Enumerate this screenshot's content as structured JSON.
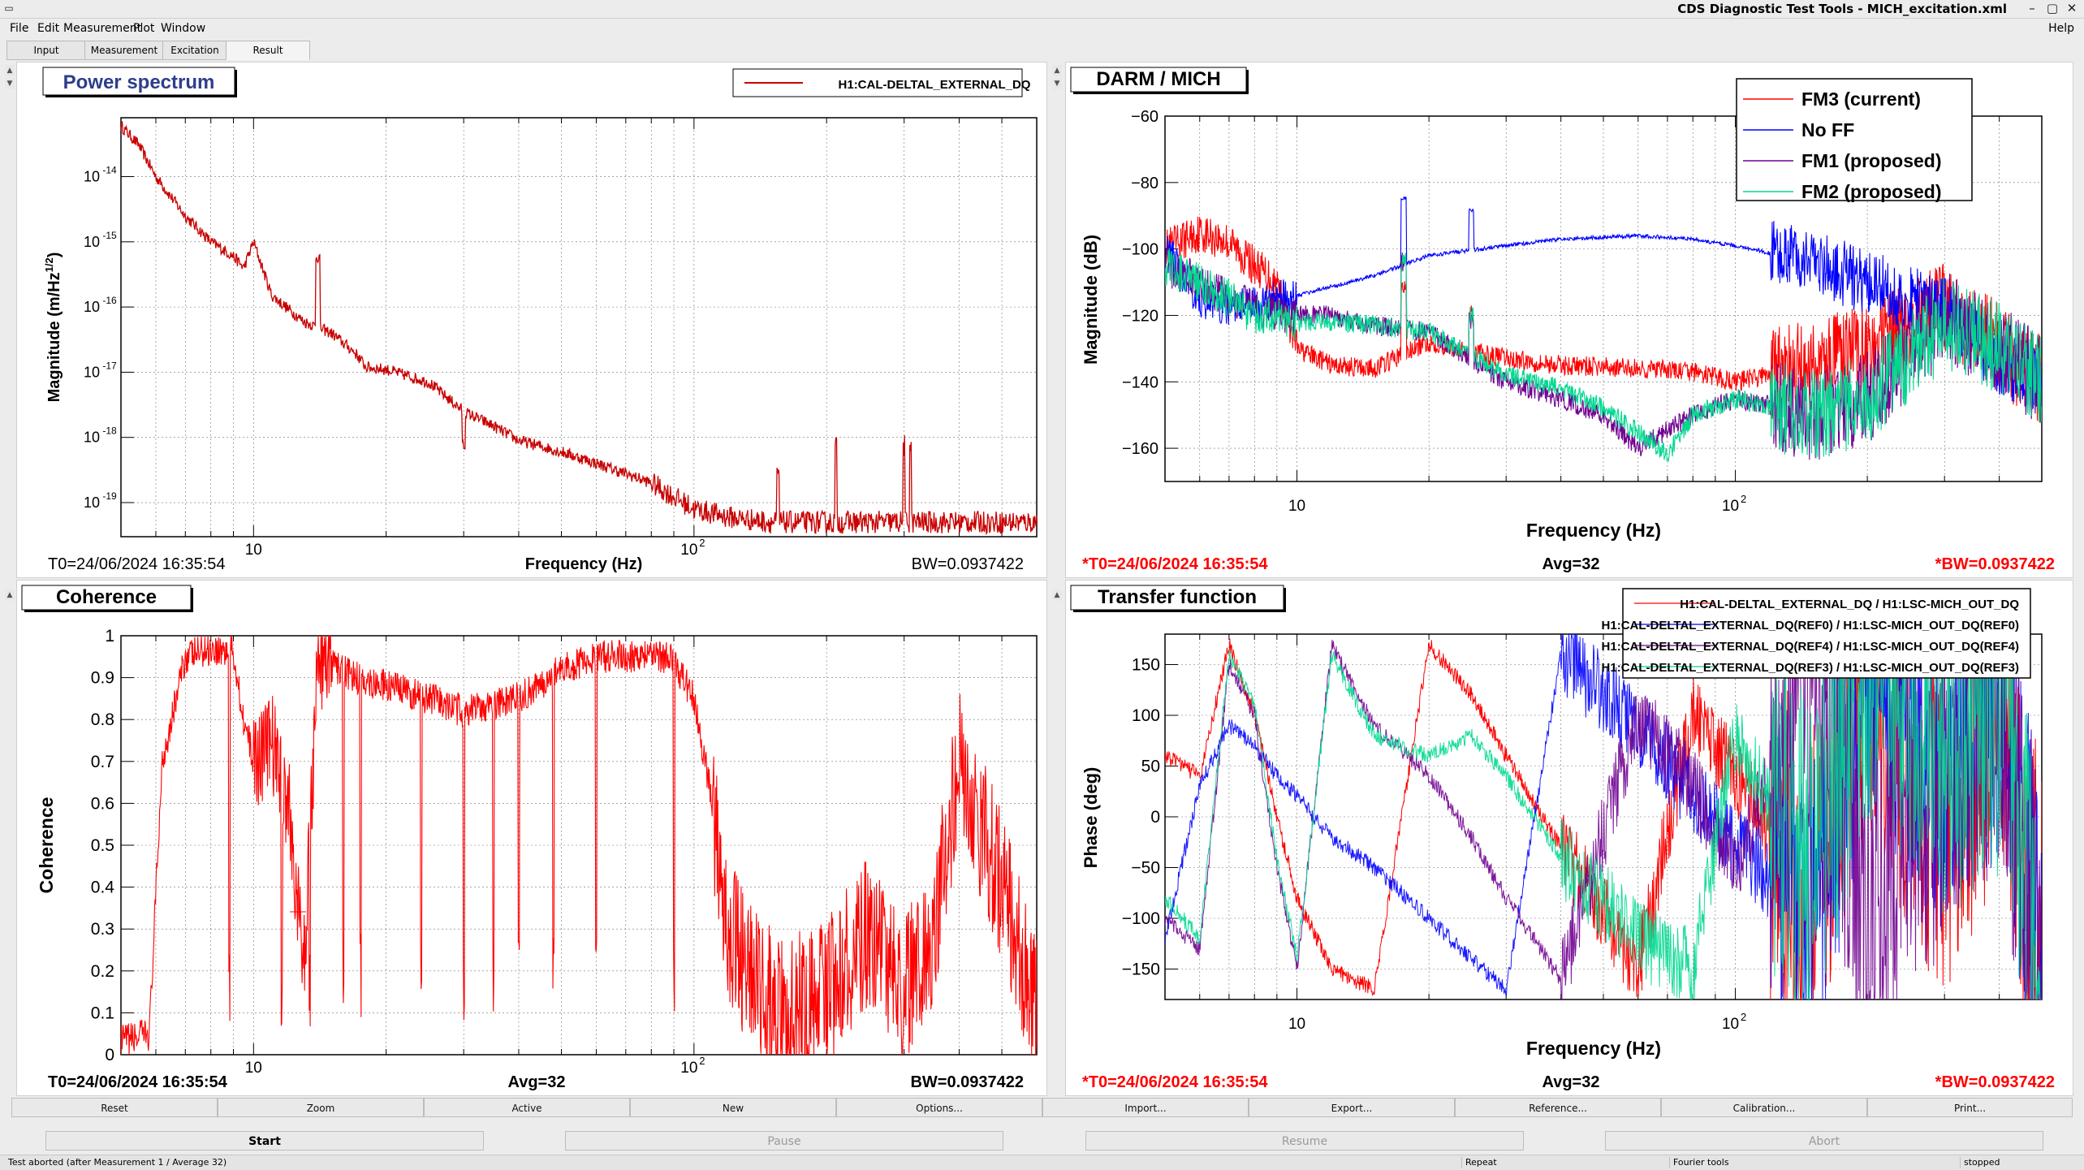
{
  "window": {
    "title": "CDS Diagnostic Test Tools - MICH_excitation.xml",
    "controls": [
      "–",
      "▢",
      "✕"
    ]
  },
  "menu": {
    "items": [
      "File",
      "Edit",
      "Measurement",
      "Plot",
      "Window"
    ],
    "help": "Help"
  },
  "tabs": [
    "Input",
    "Measurement",
    "Excitation",
    "Result"
  ],
  "colors": {
    "red": "#ff0000",
    "darkred": "#c80000",
    "blue": "#0000ff",
    "purple": "#700090",
    "teal": "#00d890",
    "title_blue": "#2c3e8c"
  },
  "panels": {
    "power": {
      "title": "Power spectrum",
      "legend": "H1:CAL-DELTAL_EXTERNAL_DQ",
      "ylabel": "Magnitude (m/Hz",
      "ylabel_sup": "1/2",
      "ylabel_end": ")",
      "xlabel": "Frequency (Hz)",
      "footer_left": "T0=24/06/2024 16:35:54",
      "footer_right": "BW=0.0937422"
    },
    "darm": {
      "title": "DARM / MICH",
      "ylabel": "Magnitude (dB)",
      "xlabel": "Frequency (Hz)",
      "legend": [
        "FM3 (current)",
        "No FF",
        "FM1 (proposed)",
        "FM2 (proposed)"
      ],
      "footer_left": "*T0=24/06/2024 16:35:54",
      "footer_mid": "Avg=32",
      "footer_right": "*BW=0.0937422"
    },
    "coherence": {
      "title": "Coherence",
      "ylabel": "Coherence",
      "footer_left": "T0=24/06/2024 16:35:54",
      "footer_mid": "Avg=32",
      "footer_right": "BW=0.0937422"
    },
    "tf": {
      "title": "Transfer function",
      "ylabel": "Phase (deg)",
      "xlabel": "Frequency (Hz)",
      "legend": [
        "H1:CAL-DELTAL_EXTERNAL_DQ / H1:LSC-MICH_OUT_DQ",
        "H1:CAL-DELTAL_EXTERNAL_DQ(REF0) / H1:LSC-MICH_OUT_DQ(REF0)",
        "H1:CAL-DELTAL_EXTERNAL_DQ(REF4) / H1:LSC-MICH_OUT_DQ(REF4)",
        "H1:CAL-DELTAL_EXTERNAL_DQ(REF3) / H1:LSC-MICH_OUT_DQ(REF3)"
      ],
      "footer_left": "*T0=24/06/2024 16:35:54",
      "footer_mid": "Avg=32",
      "footer_right": "*BW=0.0937422"
    }
  },
  "chart_data": [
    {
      "type": "line",
      "title": "Power spectrum",
      "xscale": "log",
      "yscale": "log",
      "xlim": [
        5,
        600
      ],
      "ylim": [
        3e-20,
        8e-14
      ],
      "xticks": [
        "10",
        "10^2"
      ],
      "yticks": [
        "10^-14",
        "10^-15",
        "10^-16",
        "10^-17",
        "10^-18",
        "10^-19"
      ],
      "series": [
        {
          "name": "H1:CAL-DELTAL_EXTERNAL_DQ",
          "color": "#c80000",
          "x": [
            5,
            5.5,
            6,
            7,
            8,
            9,
            9.5,
            10,
            11,
            13,
            15,
            17,
            18,
            20,
            25,
            30,
            35,
            40,
            50,
            60,
            80,
            100,
            120,
            150,
            200,
            300,
            400,
            600
          ],
          "y": [
            6e-14,
            3e-14,
            1e-14,
            2.5e-15,
            1e-15,
            6e-16,
            4e-16,
            1e-15,
            1.5e-16,
            6e-17,
            4e-17,
            2e-17,
            1.2e-17,
            1.1e-17,
            7e-18,
            2.5e-18,
            1.5e-18,
            9e-19,
            6e-19,
            4e-19,
            2e-19,
            8e-20,
            6e-20,
            5e-20,
            5e-20,
            5e-20,
            5e-20,
            5e-20
          ]
        }
      ]
    },
    {
      "type": "line",
      "title": "DARM / MICH",
      "xscale": "log",
      "xlim": [
        5,
        500
      ],
      "ylim": [
        -170,
        -60
      ],
      "xticks": [
        "10",
        "10^2"
      ],
      "yticks": [
        -60,
        -80,
        -100,
        -120,
        -140,
        -160
      ],
      "series": [
        {
          "name": "FM3 (current)",
          "color": "#ff0000",
          "x": [
            5,
            6,
            7,
            8,
            9,
            10,
            12,
            15,
            20,
            25,
            30,
            40,
            60,
            80,
            100,
            150,
            200,
            300,
            400,
            500
          ],
          "y": [
            -100,
            -95,
            -98,
            -105,
            -110,
            -130,
            -135,
            -136,
            -128,
            -131,
            -133,
            -135,
            -136,
            -137,
            -140,
            -135,
            -130,
            -118,
            -130,
            -140
          ]
        },
        {
          "name": "No FF",
          "color": "#0000ff",
          "x": [
            5,
            6,
            7,
            8,
            10,
            15,
            20,
            30,
            40,
            60,
            80,
            100,
            150,
            200,
            250,
            300,
            400,
            500
          ],
          "y": [
            -100,
            -115,
            -118,
            -117,
            -114,
            -108,
            -102,
            -99,
            -97,
            -96,
            -97,
            -99,
            -104,
            -110,
            -115,
            -118,
            -135,
            -140
          ]
        },
        {
          "name": "FM1 (proposed)",
          "color": "#700090",
          "x": [
            5,
            6,
            7,
            8,
            10,
            12,
            15,
            20,
            30,
            40,
            50,
            60,
            80,
            100,
            150,
            200,
            300,
            400,
            500
          ],
          "y": [
            -105,
            -110,
            -115,
            -118,
            -120,
            -120,
            -123,
            -125,
            -140,
            -145,
            -150,
            -160,
            -150,
            -145,
            -150,
            -145,
            -120,
            -130,
            -140
          ]
        },
        {
          "name": "FM2 (proposed)",
          "color": "#00d890",
          "x": [
            5,
            6,
            7,
            8,
            10,
            12,
            15,
            20,
            30,
            40,
            50,
            60,
            70,
            80,
            100,
            150,
            200,
            300,
            400,
            500
          ],
          "y": [
            -105,
            -110,
            -115,
            -120,
            -122,
            -122,
            -123,
            -125,
            -138,
            -142,
            -148,
            -155,
            -162,
            -150,
            -145,
            -150,
            -145,
            -122,
            -130,
            -140
          ]
        }
      ]
    },
    {
      "type": "line",
      "title": "Coherence",
      "xscale": "log",
      "xlim": [
        5,
        600
      ],
      "ylim": [
        0,
        1
      ],
      "xticks": [
        "10",
        "10^2"
      ],
      "yticks": [
        0,
        0.1,
        0.2,
        0.3,
        0.4,
        0.5,
        0.6,
        0.7,
        0.8,
        0.9,
        1
      ],
      "series": [
        {
          "name": "",
          "color": "#ff0000",
          "x": [
            5,
            5.8,
            6.2,
            7,
            8,
            9,
            9.5,
            10,
            11,
            12,
            13,
            14,
            15,
            17,
            20,
            25,
            30,
            40,
            50,
            60,
            70,
            80,
            90,
            100,
            110,
            120,
            140,
            160,
            200,
            250,
            300,
            350,
            400,
            500,
            600
          ],
          "y": [
            0.03,
            0.05,
            0.7,
            0.95,
            0.97,
            0.96,
            0.8,
            0.7,
            0.75,
            0.6,
            0.2,
            0.95,
            0.93,
            0.9,
            0.88,
            0.85,
            0.82,
            0.85,
            0.92,
            0.95,
            0.95,
            0.96,
            0.94,
            0.85,
            0.6,
            0.3,
            0.15,
            0.1,
            0.15,
            0.3,
            0.15,
            0.3,
            0.7,
            0.4,
            0.1
          ]
        }
      ]
    },
    {
      "type": "line",
      "title": "Transfer function",
      "xscale": "log",
      "xlim": [
        5,
        500
      ],
      "ylim": [
        -180,
        180
      ],
      "xticks": [
        "10",
        "10^2"
      ],
      "yticks": [
        150,
        100,
        50,
        0,
        -50,
        -100,
        -150
      ],
      "series": [
        {
          "name": "H1:CAL-DELTAL_EXTERNAL_DQ / H1:LSC-MICH_OUT_DQ",
          "color": "#ff0000",
          "x": [
            5,
            6,
            7,
            8,
            9,
            10,
            12,
            15,
            20,
            25,
            30,
            40,
            60,
            80,
            100,
            150,
            200,
            300,
            400,
            500
          ],
          "y": [
            60,
            40,
            170,
            100,
            0,
            -80,
            -150,
            -170,
            170,
            120,
            60,
            -30,
            -150,
            100,
            40,
            -80,
            150,
            -30,
            120,
            -120
          ]
        },
        {
          "name": "H1:CAL-DELTAL_EXTERNAL_DQ(REF0) / H1:LSC-MICH_OUT_DQ(REF0)",
          "color": "#0000ff",
          "x": [
            5,
            6,
            7,
            8,
            9,
            10,
            12,
            15,
            20,
            25,
            30,
            40,
            60,
            80,
            100,
            150,
            200,
            300,
            400,
            500
          ],
          "y": [
            -120,
            30,
            90,
            70,
            40,
            20,
            -20,
            -50,
            -100,
            -140,
            -170,
            160,
            90,
            20,
            -30,
            -100,
            170,
            50,
            130,
            -140
          ]
        },
        {
          "name": "H1:CAL-DELTAL_EXTERNAL_DQ(REF4) / H1:LSC-MICH_OUT_DQ(REF4)",
          "color": "#700090",
          "x": [
            5,
            6,
            7,
            8,
            9,
            10,
            12,
            15,
            20,
            25,
            30,
            40,
            60,
            80,
            100,
            150,
            200,
            300,
            400,
            500
          ],
          "y": [
            -100,
            -130,
            150,
            100,
            -50,
            -150,
            170,
            90,
            40,
            -20,
            -80,
            -160,
            100,
            30,
            -50,
            160,
            -100,
            40,
            120,
            -160
          ]
        },
        {
          "name": "H1:CAL-DELTAL_EXTERNAL_DQ(REF3) / H1:LSC-MICH_OUT_DQ(REF3)",
          "color": "#00d890",
          "x": [
            5,
            6,
            7,
            8,
            9,
            10,
            12,
            15,
            20,
            25,
            30,
            40,
            60,
            80,
            100,
            150,
            200,
            300,
            400,
            500
          ],
          "y": [
            -80,
            -120,
            160,
            110,
            -40,
            -140,
            160,
            80,
            60,
            80,
            40,
            -40,
            -120,
            -150,
            80,
            -60,
            170,
            60,
            110,
            -150
          ]
        }
      ]
    }
  ],
  "toolbar": [
    "Reset",
    "Zoom",
    "Active",
    "New",
    "Options...",
    "Import...",
    "Export...",
    "Reference...",
    "Calibration...",
    "Print..."
  ],
  "actions": [
    "Start",
    "Pause",
    "Resume",
    "Abort"
  ],
  "status": {
    "message": "Test aborted (after Measurement 1 / Average 32)",
    "repeat": "Repeat",
    "fourier": "Fourier tools",
    "state": "stopped"
  }
}
